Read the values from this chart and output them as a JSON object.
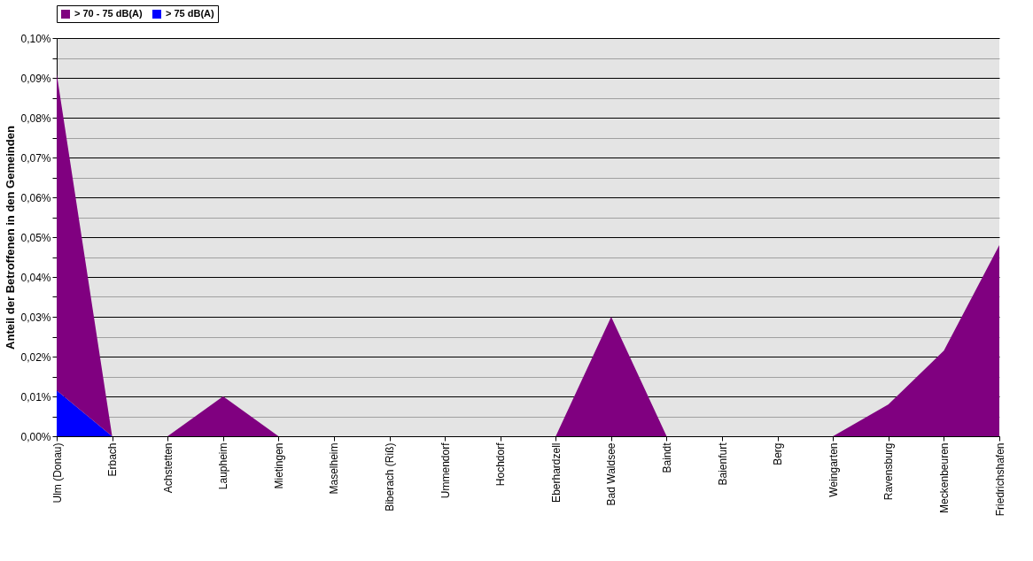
{
  "chart_data": {
    "type": "area",
    "stacked": true,
    "ylabel": "Anteil der Betroffenen in den Gemeinden",
    "categories": [
      "Ulm (Donau)",
      "Erbach",
      "Achstetten",
      "Laupheim",
      "Mietingen",
      "Maselheim",
      "Biberach (Riß)",
      "Ummendorf",
      "Hochdorf",
      "Eberhardzell",
      "Bad Waldsee",
      "Baindt",
      "Baienfurt",
      "Berg",
      "Weingarten",
      "Ravensburg",
      "Meckenbeuren",
      "Friedrichshafen"
    ],
    "series": [
      {
        "name": "> 75 dB(A)",
        "color": "#0000ff",
        "values": [
          0.0115,
          0,
          0,
          0,
          0,
          0,
          0,
          0,
          0,
          0,
          0,
          0,
          0,
          0,
          0,
          0,
          0,
          0
        ]
      },
      {
        "name": "> 70 - 75 dB(A)",
        "color": "#800080",
        "values": [
          0.0795,
          0,
          0,
          0.01,
          0,
          0,
          0,
          0,
          0,
          0,
          0.03,
          0,
          0,
          0,
          0,
          0.008,
          0.0215,
          0.048
        ]
      }
    ],
    "ylim": [
      0,
      0.1
    ],
    "yticks": [
      {
        "value": 0,
        "label": "0,00%"
      },
      {
        "value": 0.005,
        "label": null
      },
      {
        "value": 0.01,
        "label": "0,01%"
      },
      {
        "value": 0.015,
        "label": null
      },
      {
        "value": 0.02,
        "label": "0,02%"
      },
      {
        "value": 0.025,
        "label": null
      },
      {
        "value": 0.03,
        "label": "0,03%"
      },
      {
        "value": 0.035,
        "label": null
      },
      {
        "value": 0.04,
        "label": "0,04%"
      },
      {
        "value": 0.045,
        "label": null
      },
      {
        "value": 0.05,
        "label": "0,05%"
      },
      {
        "value": 0.055,
        "label": null
      },
      {
        "value": 0.06,
        "label": "0,06%"
      },
      {
        "value": 0.065,
        "label": null
      },
      {
        "value": 0.07,
        "label": "0,07%"
      },
      {
        "value": 0.075,
        "label": null
      },
      {
        "value": 0.08,
        "label": "0,08%"
      },
      {
        "value": 0.085,
        "label": null
      },
      {
        "value": 0.09,
        "label": "0,09%"
      },
      {
        "value": 0.095,
        "label": null
      },
      {
        "value": 0.1,
        "label": "0,10%"
      }
    ],
    "grid": "y",
    "legend": "top"
  }
}
